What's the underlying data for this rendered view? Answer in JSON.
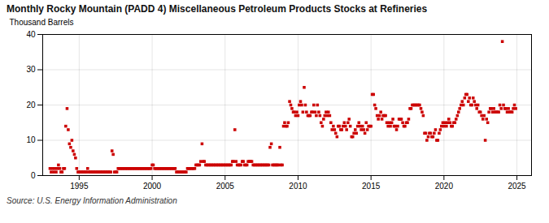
{
  "chart_data": {
    "type": "scatter",
    "title": "Monthly Rocky Mountain (PADD 4) Miscellaneous Petroleum Products Stocks at Refineries",
    "ylabel": "Thousand Barrels",
    "source": "Source: U.S. Energy Information Administration",
    "color": "#cc0000",
    "marker": "square",
    "grid": true,
    "xlim": [
      1992.5,
      2026
    ],
    "xticks": [
      1995,
      2000,
      2005,
      2010,
      2015,
      2020,
      2025
    ],
    "ylim": [
      0,
      40
    ],
    "yticks": [
      0,
      10,
      20,
      30,
      40
    ],
    "x": [
      1993.0,
      1993.08,
      1993.17,
      1993.25,
      1993.33,
      1993.42,
      1993.5,
      1993.58,
      1993.67,
      1993.75,
      1993.83,
      1993.92,
      1994.0,
      1994.08,
      1994.17,
      1994.25,
      1994.33,
      1994.42,
      1994.5,
      1994.58,
      1994.67,
      1994.75,
      1994.83,
      1994.92,
      1995.0,
      1995.08,
      1995.17,
      1995.25,
      1995.33,
      1995.42,
      1995.5,
      1995.58,
      1995.67,
      1995.75,
      1995.83,
      1995.92,
      1996.0,
      1996.08,
      1996.17,
      1996.25,
      1996.33,
      1996.42,
      1996.5,
      1996.58,
      1996.67,
      1996.75,
      1996.83,
      1996.92,
      1997.0,
      1997.08,
      1997.17,
      1997.25,
      1997.33,
      1997.42,
      1997.5,
      1997.58,
      1997.67,
      1997.75,
      1997.83,
      1997.92,
      1998.0,
      1998.08,
      1998.17,
      1998.25,
      1998.33,
      1998.42,
      1998.5,
      1998.58,
      1998.67,
      1998.75,
      1998.83,
      1998.92,
      1999.0,
      1999.08,
      1999.17,
      1999.25,
      1999.33,
      1999.42,
      1999.5,
      1999.58,
      1999.67,
      1999.75,
      1999.83,
      1999.92,
      2000.0,
      2000.08,
      2000.17,
      2000.25,
      2000.33,
      2000.42,
      2000.5,
      2000.58,
      2000.67,
      2000.75,
      2000.83,
      2000.92,
      2001.0,
      2001.08,
      2001.17,
      2001.25,
      2001.33,
      2001.42,
      2001.5,
      2001.58,
      2001.67,
      2001.75,
      2001.83,
      2001.92,
      2002.0,
      2002.08,
      2002.17,
      2002.25,
      2002.33,
      2002.42,
      2002.5,
      2002.58,
      2002.67,
      2002.75,
      2002.83,
      2002.92,
      2003.0,
      2003.08,
      2003.17,
      2003.25,
      2003.33,
      2003.42,
      2003.5,
      2003.58,
      2003.67,
      2003.75,
      2003.83,
      2003.92,
      2004.0,
      2004.08,
      2004.17,
      2004.25,
      2004.33,
      2004.42,
      2004.5,
      2004.58,
      2004.67,
      2004.75,
      2004.83,
      2004.92,
      2005.0,
      2005.08,
      2005.17,
      2005.25,
      2005.33,
      2005.42,
      2005.5,
      2005.58,
      2005.67,
      2005.75,
      2005.83,
      2005.92,
      2006.0,
      2006.08,
      2006.17,
      2006.25,
      2006.33,
      2006.42,
      2006.5,
      2006.58,
      2006.67,
      2006.75,
      2006.83,
      2006.92,
      2007.0,
      2007.08,
      2007.17,
      2007.25,
      2007.33,
      2007.42,
      2007.5,
      2007.58,
      2007.67,
      2007.75,
      2007.83,
      2007.92,
      2008.0,
      2008.08,
      2008.17,
      2008.25,
      2008.33,
      2008.42,
      2008.5,
      2008.58,
      2008.67,
      2008.75,
      2008.83,
      2008.92,
      2009.0,
      2009.08,
      2009.17,
      2009.25,
      2009.33,
      2009.42,
      2009.5,
      2009.58,
      2009.67,
      2009.75,
      2009.83,
      2009.92,
      2010.0,
      2010.08,
      2010.17,
      2010.25,
      2010.33,
      2010.42,
      2010.5,
      2010.58,
      2010.67,
      2010.75,
      2010.83,
      2010.92,
      2011.0,
      2011.08,
      2011.17,
      2011.25,
      2011.33,
      2011.42,
      2011.5,
      2011.58,
      2011.67,
      2011.75,
      2011.83,
      2011.92,
      2012.0,
      2012.08,
      2012.17,
      2012.25,
      2012.33,
      2012.42,
      2012.5,
      2012.58,
      2012.67,
      2012.75,
      2012.83,
      2012.92,
      2013.0,
      2013.08,
      2013.17,
      2013.25,
      2013.33,
      2013.42,
      2013.5,
      2013.58,
      2013.67,
      2013.75,
      2013.83,
      2013.92,
      2014.0,
      2014.08,
      2014.17,
      2014.25,
      2014.33,
      2014.42,
      2014.5,
      2014.58,
      2014.67,
      2014.75,
      2014.83,
      2014.92,
      2015.0,
      2015.08,
      2015.17,
      2015.25,
      2015.33,
      2015.42,
      2015.5,
      2015.58,
      2015.67,
      2015.75,
      2015.83,
      2015.92,
      2016.0,
      2016.08,
      2016.17,
      2016.25,
      2016.33,
      2016.42,
      2016.5,
      2016.58,
      2016.67,
      2016.75,
      2016.83,
      2016.92,
      2017.0,
      2017.08,
      2017.17,
      2017.25,
      2017.33,
      2017.42,
      2017.5,
      2017.58,
      2017.67,
      2017.75,
      2017.83,
      2017.92,
      2018.0,
      2018.08,
      2018.17,
      2018.25,
      2018.33,
      2018.42,
      2018.5,
      2018.58,
      2018.67,
      2018.75,
      2018.83,
      2018.92,
      2019.0,
      2019.08,
      2019.17,
      2019.25,
      2019.33,
      2019.42,
      2019.5,
      2019.58,
      2019.67,
      2019.75,
      2019.83,
      2019.92,
      2020.0,
      2020.08,
      2020.17,
      2020.25,
      2020.33,
      2020.42,
      2020.5,
      2020.58,
      2020.67,
      2020.75,
      2020.83,
      2020.92,
      2021.0,
      2021.08,
      2021.17,
      2021.25,
      2021.33,
      2021.42,
      2021.5,
      2021.58,
      2021.67,
      2021.75,
      2021.83,
      2021.92,
      2022.0,
      2022.08,
      2022.17,
      2022.25,
      2022.33,
      2022.42,
      2022.5,
      2022.58,
      2022.67,
      2022.75,
      2022.83,
      2022.92,
      2023.0,
      2023.08,
      2023.17,
      2023.25,
      2023.33,
      2023.42,
      2023.5,
      2023.58,
      2023.67,
      2023.75,
      2023.83,
      2023.92,
      2024.0,
      2024.08,
      2024.17,
      2024.25,
      2024.33,
      2024.42,
      2024.5,
      2024.58,
      2024.67,
      2024.75,
      2024.83,
      2024.92
    ],
    "values": [
      2,
      1,
      2,
      1,
      2,
      1,
      2,
      3,
      2,
      1,
      1,
      2,
      2,
      14,
      19,
      13,
      9,
      8,
      10,
      7,
      6,
      5,
      2,
      1,
      1,
      1,
      1,
      1,
      1,
      1,
      1,
      2,
      1,
      1,
      1,
      1,
      1,
      1,
      1,
      1,
      1,
      1,
      1,
      1,
      1,
      1,
      1,
      1,
      1,
      1,
      1,
      7,
      6,
      1,
      1,
      1,
      2,
      2,
      2,
      2,
      2,
      2,
      2,
      2,
      2,
      2,
      2,
      2,
      2,
      2,
      2,
      2,
      2,
      2,
      2,
      2,
      2,
      2,
      2,
      2,
      2,
      2,
      2,
      2,
      3,
      3,
      2,
      2,
      2,
      2,
      2,
      2,
      2,
      2,
      2,
      2,
      2,
      2,
      2,
      2,
      2,
      2,
      2,
      2,
      1,
      1,
      1,
      1,
      1,
      1,
      1,
      1,
      1,
      2,
      2,
      2,
      2,
      2,
      2,
      2,
      3,
      3,
      3,
      3,
      4,
      9,
      4,
      4,
      3,
      3,
      3,
      3,
      3,
      3,
      3,
      3,
      3,
      3,
      3,
      3,
      3,
      3,
      3,
      3,
      3,
      3,
      3,
      3,
      3,
      3,
      4,
      4,
      13,
      4,
      3,
      3,
      3,
      3,
      4,
      4,
      3,
      3,
      3,
      4,
      4,
      4,
      4,
      3,
      3,
      3,
      3,
      3,
      3,
      3,
      3,
      3,
      3,
      3,
      3,
      3,
      3,
      8,
      9,
      3,
      3,
      3,
      3,
      3,
      3,
      8,
      3,
      3,
      14,
      15,
      14,
      14,
      15,
      21,
      20,
      19,
      18,
      18,
      17,
      18,
      17,
      20,
      21,
      20,
      18,
      25,
      20,
      18,
      17,
      17,
      17,
      18,
      18,
      20,
      18,
      17,
      20,
      18,
      17,
      15,
      14,
      16,
      17,
      18,
      17,
      18,
      17,
      15,
      13,
      14,
      13,
      12,
      11,
      14,
      14,
      13,
      13,
      14,
      15,
      14,
      13,
      15,
      16,
      14,
      11,
      11,
      12,
      13,
      12,
      14,
      15,
      14,
      13,
      14,
      13,
      12,
      15,
      13,
      14,
      14,
      14,
      23,
      23,
      20,
      19,
      17,
      16,
      17,
      18,
      16,
      17,
      17,
      17,
      15,
      14,
      15,
      14,
      15,
      16,
      14,
      14,
      13,
      14,
      16,
      16,
      16,
      15,
      14,
      14,
      15,
      15,
      16,
      19,
      19,
      20,
      20,
      20,
      20,
      20,
      20,
      20,
      19,
      18,
      17,
      12,
      12,
      10,
      11,
      12,
      12,
      11,
      11,
      12,
      13,
      10,
      10,
      12,
      13,
      14,
      15,
      14,
      15,
      14,
      15,
      16,
      15,
      14,
      14,
      15,
      15,
      16,
      17,
      18,
      19,
      20,
      21,
      20,
      22,
      23,
      23,
      21,
      22,
      20,
      20,
      22,
      21,
      20,
      19,
      20,
      18,
      18,
      17,
      16,
      17,
      10,
      16,
      15,
      18,
      19,
      19,
      18,
      19,
      18,
      18,
      18,
      18,
      20,
      19,
      38,
      20,
      19,
      19,
      18,
      19,
      18,
      18,
      18,
      19,
      20,
      19
    ]
  }
}
